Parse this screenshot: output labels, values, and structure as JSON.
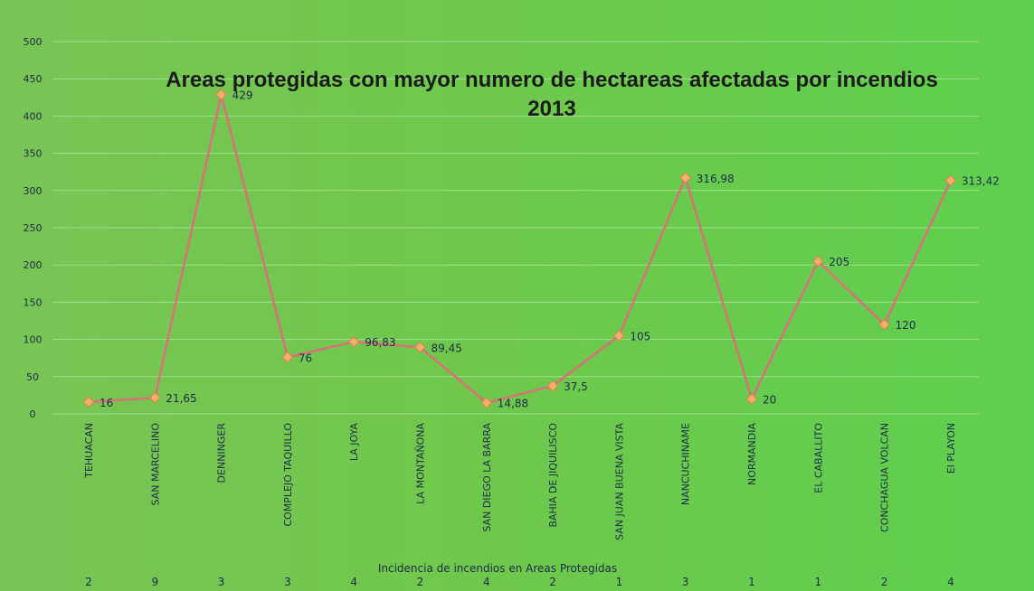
{
  "chart_data": {
    "type": "line",
    "title": "Areas protegidas con mayor numero de hectareas afectadas por incendios",
    "subtitle": "2013",
    "xlabel": "Incidencia de incendios en Areas Protegidas",
    "ylabel": "",
    "ylim": [
      0,
      500
    ],
    "yticks": [
      "0",
      "50",
      "100",
      "150",
      "200",
      "250",
      "300",
      "350",
      "400",
      "450",
      "500"
    ],
    "grid": true,
    "categories": [
      "TEHUACAN",
      "SAN MARCELINO",
      "DENNINGER",
      "COMPLEJO TAQUILLO",
      "LA JOYA",
      "LA MONTAÑONA",
      "SAN DIEGO LA BARRA",
      "BAHIA DE JIQUILISCO",
      "SAN JUAN BUENA VISTA",
      "NANCUCHINAME",
      "NORMANDIA",
      "EL CABALLITO",
      "CONCHAGUA VOLCAN",
      "El PLAYON"
    ],
    "incidencia": [
      "2",
      "9",
      "3",
      "3",
      "4",
      "2",
      "4",
      "2",
      "1",
      "3",
      "1",
      "1",
      "2",
      "4"
    ],
    "series": [
      {
        "values": [
          16,
          21.65,
          429,
          76,
          96.83,
          89.45,
          14.88,
          37.5,
          105,
          316.98,
          20,
          205,
          120,
          313.42
        ],
        "labels": [
          "16",
          "21,65",
          "429",
          "76",
          "96,83",
          "89,45",
          "14,88",
          "37,5",
          "105",
          "316,98",
          "20",
          "205",
          "120",
          "313,42"
        ],
        "color": "#d9707a",
        "marker_color": "#f2b06a"
      }
    ]
  }
}
